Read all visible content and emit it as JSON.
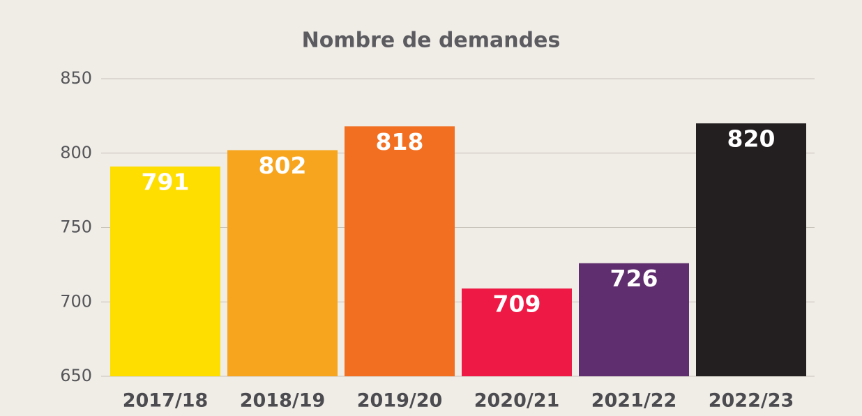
{
  "chart_data": {
    "type": "bar",
    "title": "Nombre de demandes",
    "categories": [
      "2017/18",
      "2018/19",
      "2019/20",
      "2020/21",
      "2021/22",
      "2022/23"
    ],
    "values": [
      791,
      802,
      818,
      709,
      726,
      820
    ],
    "colors": [
      "#fedd00",
      "#f7a51e",
      "#f26f21",
      "#ee1a45",
      "#5f2e6e",
      "#231f20"
    ],
    "ylim": [
      650,
      850
    ],
    "yticks": [
      650,
      700,
      750,
      800,
      850
    ],
    "grid": true
  }
}
